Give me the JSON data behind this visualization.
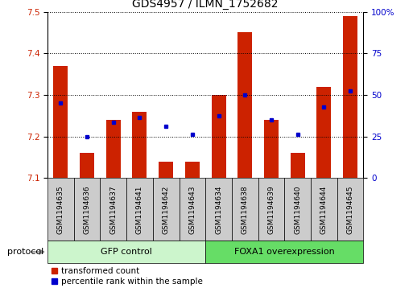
{
  "title": "GDS4957 / ILMN_1752682",
  "categories": [
    "GSM1194635",
    "GSM1194636",
    "GSM1194637",
    "GSM1194641",
    "GSM1194642",
    "GSM1194643",
    "GSM1194634",
    "GSM1194638",
    "GSM1194639",
    "GSM1194640",
    "GSM1194644",
    "GSM1194645"
  ],
  "red_values": [
    7.37,
    7.16,
    7.24,
    7.26,
    7.14,
    7.14,
    7.3,
    7.45,
    7.24,
    7.16,
    7.32,
    7.49
  ],
  "blue_values": [
    7.28,
    7.2,
    7.235,
    7.245,
    7.225,
    7.205,
    7.25,
    7.3,
    7.24,
    7.205,
    7.27,
    7.31
  ],
  "ylim_left": [
    7.1,
    7.5
  ],
  "ylim_right": [
    0,
    100
  ],
  "yticks_left": [
    7.1,
    7.2,
    7.3,
    7.4,
    7.5
  ],
  "yticks_right": [
    0,
    25,
    50,
    75,
    100
  ],
  "ytick_labels_right": [
    "0",
    "25",
    "50",
    "75",
    "100%"
  ],
  "group1_label": "GFP control",
  "group2_label": "FOXA1 overexpression",
  "group1_count": 6,
  "group2_count": 6,
  "protocol_label": "protocol",
  "legend_red": "transformed count",
  "legend_blue": "percentile rank within the sample",
  "bar_color_red": "#cc2200",
  "bar_color_blue": "#0000cc",
  "group1_color": "#ccf5cc",
  "group2_color": "#66dd66",
  "tick_label_bg": "#cccccc",
  "title_fontsize": 10,
  "axis_fontsize": 7.5,
  "legend_fontsize": 7.5,
  "label_fontsize": 6.5
}
